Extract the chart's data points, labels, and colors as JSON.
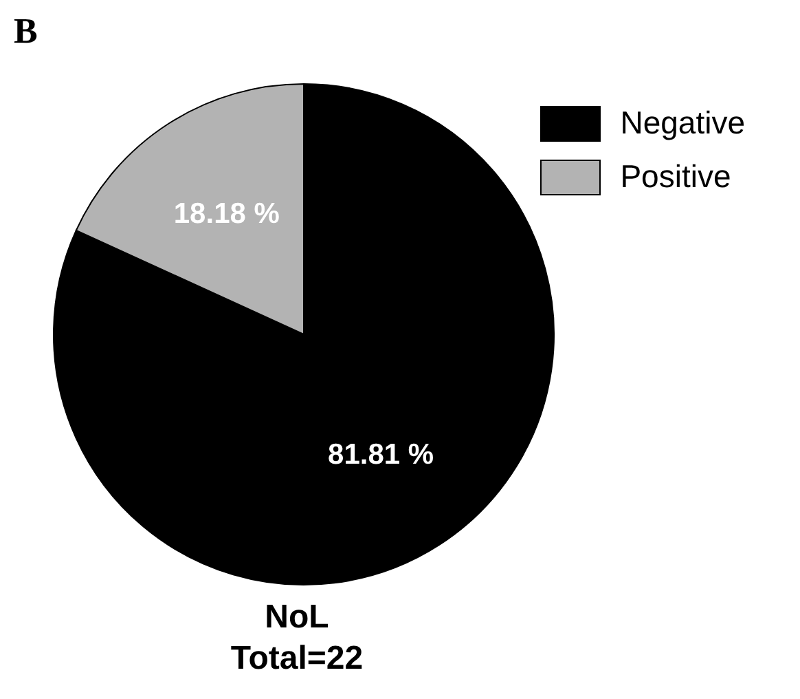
{
  "chart_data": {
    "type": "pie",
    "title": "B",
    "xlabel": "NoL",
    "annotations": [
      "Total=22"
    ],
    "categories": [
      "Negative",
      "Positive"
    ],
    "values": [
      81.81,
      18.18
    ],
    "colors": [
      "#000000",
      "#b3b3b3"
    ],
    "value_labels": [
      "81.81 %",
      "18.18 %"
    ],
    "legend": "top right"
  }
}
